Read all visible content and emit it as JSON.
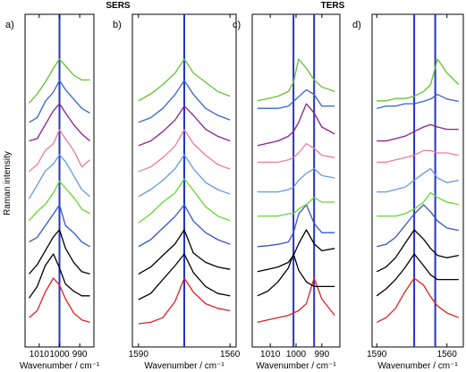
{
  "chart_data": {
    "type": "line",
    "group_titles": [
      "SERS",
      "TERS"
    ],
    "ylabel": "Raman intensity",
    "line_color": "#2233cc",
    "series_colors": [
      "#e02020",
      "#000000",
      "#000000",
      "#3355cc",
      "#66d631",
      "#6699dd",
      "#f07b96",
      "#8a1f8a",
      "#3366cc",
      "#66c030"
    ],
    "panels": [
      {
        "label": "a)",
        "group": 0,
        "xlabel": "Wavenumber / cm⁻¹",
        "xlim": [
          1017,
          983
        ],
        "ticks": [
          {
            "v": 1010,
            "t": "1010"
          },
          {
            "v": 1000,
            "t": "1000"
          },
          {
            "v": 990,
            "t": "990"
          }
        ],
        "vlines": [
          1000
        ],
        "x": [
          1015,
          1011,
          1007,
          1003,
          1000,
          997,
          993,
          989,
          985
        ],
        "series": [
          [
            0.15,
            0.3,
            0.7,
            1.0,
            0.85,
            0.55,
            0.25,
            0.1,
            0.05
          ],
          [
            0.05,
            0.3,
            0.75,
            1.0,
            0.7,
            0.35,
            0.2,
            0.1,
            0.1
          ],
          [
            0.05,
            0.25,
            0.55,
            0.85,
            1.0,
            0.6,
            0.3,
            0.1,
            0.05
          ],
          [
            0.2,
            0.3,
            0.55,
            0.8,
            1.0,
            0.55,
            0.4,
            0.2,
            0.1
          ],
          [
            0.1,
            0.3,
            0.45,
            0.7,
            0.95,
            0.8,
            0.6,
            0.35,
            0.25
          ],
          [
            0.05,
            0.35,
            0.65,
            0.8,
            1.0,
            0.85,
            0.55,
            0.25,
            0.1
          ],
          [
            0.1,
            0.25,
            0.55,
            0.7,
            1.0,
            0.8,
            0.55,
            0.2,
            0.35
          ],
          [
            0.2,
            0.25,
            0.55,
            0.85,
            1.0,
            0.8,
            0.55,
            0.35,
            0.2
          ],
          [
            0.1,
            0.2,
            0.55,
            0.75,
            1.0,
            0.8,
            0.6,
            0.4,
            0.3
          ],
          [
            0.05,
            0.25,
            0.5,
            0.8,
            1.0,
            0.85,
            0.65,
            0.55,
            0.55
          ]
        ]
      },
      {
        "label": "b)",
        "group": 0,
        "xlabel": "Wavenumber / cm⁻¹",
        "xlim": [
          1592,
          1558
        ],
        "ticks": [
          {
            "v": 1590,
            "t": "1590"
          },
          {
            "v": 1560,
            "t": "1560"
          }
        ],
        "vlines": [
          1575
        ],
        "x": [
          1590,
          1586,
          1582,
          1578,
          1575,
          1572,
          1568,
          1564,
          1560
        ],
        "series": [
          [
            0.02,
            0.05,
            0.15,
            0.5,
            1.0,
            0.7,
            0.45,
            0.35,
            0.3
          ],
          [
            0.02,
            0.15,
            0.45,
            0.75,
            1.0,
            0.6,
            0.3,
            0.15,
            0.1
          ],
          [
            0.05,
            0.2,
            0.45,
            0.7,
            1.0,
            0.5,
            0.3,
            0.2,
            0.15
          ],
          [
            0.1,
            0.25,
            0.5,
            0.75,
            1.0,
            0.65,
            0.4,
            0.25,
            0.15
          ],
          [
            0.05,
            0.25,
            0.5,
            0.7,
            1.0,
            0.75,
            0.4,
            0.2,
            0.1
          ],
          [
            0.1,
            0.25,
            0.45,
            0.7,
            1.0,
            0.7,
            0.4,
            0.25,
            0.15
          ],
          [
            0.1,
            0.2,
            0.4,
            0.65,
            1.0,
            0.7,
            0.45,
            0.25,
            0.15
          ],
          [
            0.1,
            0.2,
            0.4,
            0.65,
            0.95,
            0.75,
            0.45,
            0.3,
            0.2
          ],
          [
            0.1,
            0.2,
            0.4,
            0.7,
            1.0,
            0.7,
            0.4,
            0.25,
            0.15
          ],
          [
            0.1,
            0.25,
            0.45,
            0.7,
            1.0,
            0.7,
            0.5,
            0.3,
            0.2
          ]
        ]
      },
      {
        "label": "c)",
        "group": 1,
        "xlabel": "Wavenumber / cm⁻¹",
        "xlim": [
          1017,
          983
        ],
        "ticks": [
          {
            "v": 1010,
            "t": "1010"
          },
          {
            "v": 1000,
            "t": "1000"
          },
          {
            "v": 990,
            "t": "990"
          }
        ],
        "vlines": [
          1001,
          993
        ],
        "x": [
          1015,
          1011,
          1007,
          1003,
          1001,
          999,
          996,
          993,
          990,
          985
        ],
        "series": [
          [
            0.05,
            0.1,
            0.15,
            0.2,
            0.25,
            0.3,
            0.45,
            1.0,
            0.55,
            0.2
          ],
          [
            0.1,
            0.2,
            0.4,
            0.7,
            1.0,
            0.65,
            0.4,
            0.3,
            0.3,
            0.3
          ],
          [
            0.1,
            0.15,
            0.2,
            0.3,
            0.45,
            0.7,
            1.0,
            0.7,
            0.55,
            0.6
          ],
          [
            0.1,
            0.12,
            0.15,
            0.2,
            0.4,
            0.8,
            1.0,
            0.6,
            0.4,
            0.4
          ],
          [
            0.2,
            0.2,
            0.2,
            0.25,
            0.25,
            0.35,
            0.45,
            0.6,
            0.5,
            0.5
          ],
          [
            0.2,
            0.2,
            0.2,
            0.25,
            0.3,
            0.45,
            0.6,
            0.7,
            0.55,
            0.5
          ],
          [
            0.3,
            0.3,
            0.3,
            0.35,
            0.4,
            0.5,
            0.7,
            0.6,
            0.45,
            0.4
          ],
          [
            0.1,
            0.15,
            0.2,
            0.3,
            0.4,
            0.6,
            1.0,
            0.8,
            0.5,
            0.35
          ],
          [
            0.4,
            0.4,
            0.4,
            0.45,
            0.55,
            0.65,
            0.8,
            0.7,
            0.45,
            0.45
          ],
          [
            0.1,
            0.15,
            0.2,
            0.3,
            0.5,
            1.0,
            0.8,
            0.55,
            0.4,
            0.3
          ]
        ]
      },
      {
        "label": "d)",
        "group": 1,
        "xlabel": "Wavenumber / cm⁻¹",
        "xlim": [
          1592,
          1553
        ],
        "ticks": [
          {
            "v": 1590,
            "t": "1590"
          },
          {
            "v": 1560,
            "t": "1560"
          }
        ],
        "vlines": [
          1574,
          1565
        ],
        "x": [
          1590,
          1586,
          1582,
          1578,
          1574,
          1570,
          1567,
          1564,
          1560,
          1555
        ],
        "series": [
          [
            0.05,
            0.15,
            0.35,
            0.7,
            1.0,
            0.85,
            0.6,
            0.4,
            0.25,
            0.15
          ],
          [
            0.1,
            0.25,
            0.45,
            0.7,
            1.0,
            0.75,
            0.55,
            0.45,
            0.45,
            0.45
          ],
          [
            0.1,
            0.2,
            0.4,
            0.7,
            1.0,
            0.8,
            0.6,
            0.45,
            0.4,
            0.45
          ],
          [
            0.1,
            0.15,
            0.3,
            0.55,
            0.8,
            1.0,
            0.85,
            0.65,
            0.5,
            0.45
          ],
          [
            0.2,
            0.2,
            0.2,
            0.25,
            0.35,
            0.5,
            0.7,
            0.6,
            0.5,
            0.45
          ],
          [
            0.2,
            0.2,
            0.25,
            0.3,
            0.45,
            0.6,
            0.7,
            0.5,
            0.4,
            0.45
          ],
          [
            0.3,
            0.3,
            0.35,
            0.4,
            0.45,
            0.55,
            0.55,
            0.5,
            0.5,
            0.45
          ],
          [
            0.2,
            0.2,
            0.25,
            0.3,
            0.4,
            0.5,
            0.55,
            0.5,
            0.45,
            0.45
          ],
          [
            0.4,
            0.45,
            0.45,
            0.5,
            0.5,
            0.55,
            0.6,
            0.7,
            0.6,
            0.55
          ],
          [
            0.1,
            0.1,
            0.15,
            0.15,
            0.2,
            0.3,
            0.45,
            1.0,
            0.7,
            0.45
          ]
        ]
      }
    ]
  }
}
